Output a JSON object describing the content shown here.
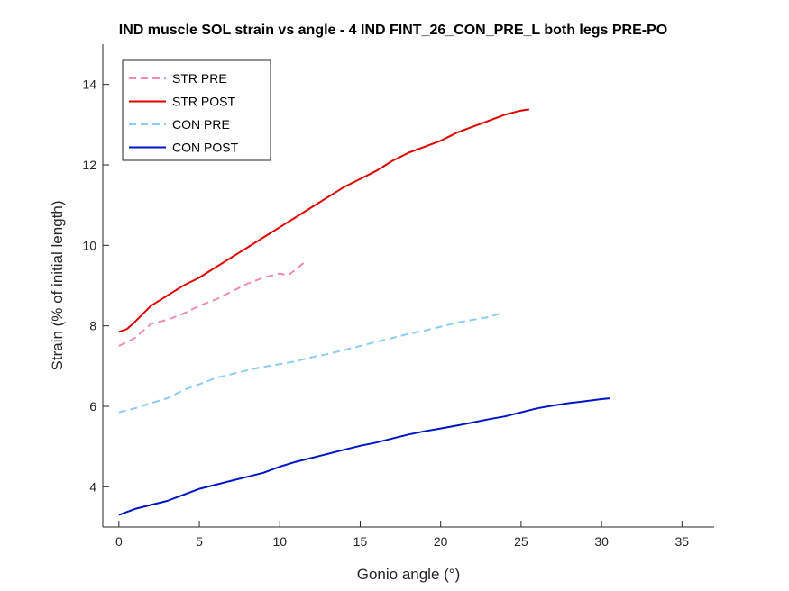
{
  "chart_data": {
    "type": "line",
    "title": "IND muscle SOL strain vs angle - 4 IND FINT_26_CON_PRE_L both legs PRE-PO",
    "xlabel": "Gonio angle (°)",
    "ylabel": "Strain (% of initial length)",
    "xlim": [
      -1,
      37
    ],
    "ylim": [
      3,
      15
    ],
    "xticks": [
      0,
      5,
      10,
      15,
      20,
      25,
      30,
      35
    ],
    "yticks": [
      4,
      6,
      8,
      10,
      12,
      14
    ],
    "grid": false,
    "legend_position": "top-left",
    "series": [
      {
        "name": "STR PRE",
        "color": "#f08cb4",
        "dash": "dashed",
        "x": [
          0,
          1,
          2,
          3,
          4,
          5,
          6,
          7,
          8,
          9,
          10,
          10.5,
          11,
          11.6
        ],
        "y": [
          7.5,
          7.7,
          8.05,
          8.15,
          8.3,
          8.5,
          8.65,
          8.85,
          9.05,
          9.2,
          9.3,
          9.25,
          9.4,
          9.6
        ]
      },
      {
        "name": "STR POST",
        "color": "#e00000",
        "dash": "solid",
        "x": [
          0,
          0.5,
          1,
          2,
          3,
          4,
          5,
          6,
          7,
          8,
          9,
          10,
          11,
          12,
          13,
          14,
          15,
          16,
          17,
          18,
          19,
          20,
          21,
          22,
          23,
          24,
          25,
          25.5
        ],
        "y": [
          7.85,
          7.92,
          8.1,
          8.5,
          8.75,
          9.0,
          9.2,
          9.45,
          9.7,
          9.95,
          10.2,
          10.45,
          10.7,
          10.95,
          11.2,
          11.45,
          11.65,
          11.85,
          12.1,
          12.3,
          12.45,
          12.6,
          12.8,
          12.95,
          13.1,
          13.25,
          13.35,
          13.38
        ]
      },
      {
        "name": "CON PRE",
        "color": "#8ccdf5",
        "dash": "dashed",
        "x": [
          0,
          1,
          2,
          3,
          4,
          5,
          6,
          7,
          8,
          9,
          10,
          11,
          12,
          13,
          14,
          15,
          16,
          17,
          18,
          19,
          20,
          21,
          22,
          23,
          23.8
        ],
        "y": [
          5.85,
          5.95,
          6.08,
          6.2,
          6.4,
          6.55,
          6.7,
          6.8,
          6.9,
          6.98,
          7.05,
          7.12,
          7.22,
          7.3,
          7.4,
          7.5,
          7.6,
          7.7,
          7.8,
          7.88,
          7.98,
          8.08,
          8.15,
          8.22,
          8.32
        ]
      },
      {
        "name": "CON POST",
        "color": "#0014c8",
        "dash": "solid",
        "x": [
          0,
          1,
          2,
          3,
          4,
          5,
          6,
          7,
          8,
          9,
          10,
          11,
          12,
          13,
          14,
          15,
          16,
          17,
          18,
          19,
          20,
          21,
          22,
          23,
          24,
          25,
          26,
          27,
          28,
          29,
          30,
          30.5
        ],
        "y": [
          3.3,
          3.45,
          3.55,
          3.65,
          3.8,
          3.95,
          4.05,
          4.15,
          4.25,
          4.35,
          4.5,
          4.62,
          4.72,
          4.82,
          4.92,
          5.02,
          5.1,
          5.2,
          5.3,
          5.38,
          5.45,
          5.52,
          5.6,
          5.68,
          5.75,
          5.85,
          5.95,
          6.02,
          6.08,
          6.13,
          6.18,
          6.2
        ]
      }
    ]
  }
}
